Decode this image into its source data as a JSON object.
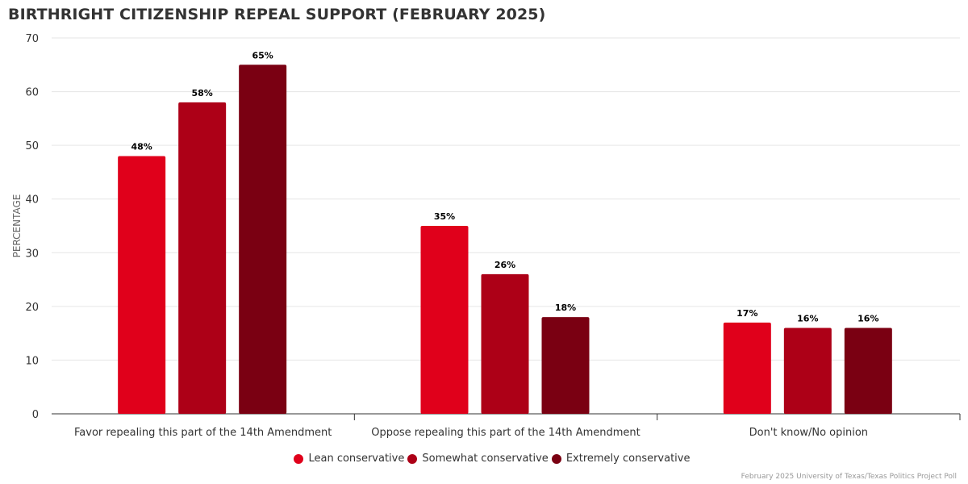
{
  "chart_data": {
    "type": "bar",
    "title": "BIRTHRIGHT CITIZENSHIP REPEAL SUPPORT (FEBRUARY 2025)",
    "xlabel": "",
    "ylabel": "PERCENTAGE",
    "ylim": [
      0,
      70
    ],
    "yticks": [
      0,
      10,
      20,
      30,
      40,
      50,
      60,
      70
    ],
    "grid": true,
    "legend_position": "bottom",
    "categories": [
      "Favor repealing this part of the 14th Amendment",
      "Oppose repealing this part of the 14th Amendment",
      "Don't know/No opinion"
    ],
    "series": [
      {
        "name": "Lean conservative",
        "color": "#e0001b",
        "values": [
          48,
          35,
          17
        ],
        "labels": [
          "48%",
          "35%",
          "17%"
        ]
      },
      {
        "name": "Somewhat conservative",
        "color": "#ad0017",
        "values": [
          58,
          26,
          16
        ],
        "labels": [
          "58%",
          "26%",
          "16%"
        ]
      },
      {
        "name": "Extremely conservative",
        "color": "#7a0012",
        "values": [
          65,
          18,
          16
        ],
        "labels": [
          "65%",
          "18%",
          "16%"
        ]
      }
    ],
    "source": "February 2025 University of Texas/Texas Politics Project Poll"
  }
}
